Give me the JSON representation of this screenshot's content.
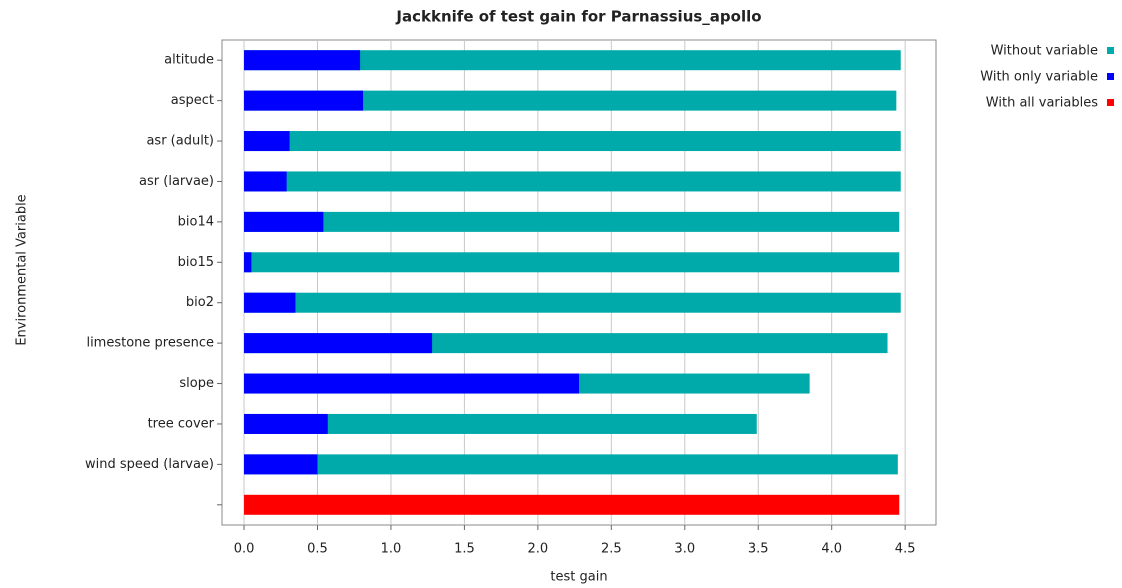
{
  "chart_data": {
    "type": "bar",
    "orientation": "horizontal",
    "title": "Jackknife of test gain for Parnassius_apollo",
    "x_label": "test gain",
    "y_label": "Environmental Variable",
    "categories": [
      "altitude",
      "aspect",
      "asr (adult)",
      "asr (larvae)",
      "bio14",
      "bio15",
      "bio2",
      "limestone presence",
      "slope",
      "tree cover",
      "wind speed (larvae)",
      null
    ],
    "series": [
      {
        "name": "Without variable",
        "color": "#00aaaa",
        "values": [
          4.47,
          4.44,
          4.47,
          4.47,
          4.46,
          4.46,
          4.47,
          4.38,
          3.85,
          3.49,
          4.45,
          null
        ]
      },
      {
        "name": "With only variable",
        "color": "#0000ff",
        "values": [
          0.79,
          0.81,
          0.31,
          0.29,
          0.54,
          0.05,
          0.35,
          1.28,
          2.28,
          0.57,
          0.5,
          null
        ]
      },
      {
        "name": "With all variables",
        "color": "#ff0000",
        "values": [
          null,
          null,
          null,
          null,
          null,
          null,
          null,
          null,
          null,
          null,
          null,
          4.46
        ]
      }
    ],
    "xlim": [
      -0.15,
      4.71
    ],
    "xticks": [
      {
        "value": 0,
        "label": "0.0"
      },
      0.5,
      {
        "value": 1,
        "label": "1.0"
      },
      1.5,
      {
        "value": 2,
        "label": "2.0"
      },
      2.5,
      {
        "value": 3,
        "label": "3.0"
      },
      3.5,
      {
        "value": 4,
        "label": "4.0"
      },
      4.5
    ],
    "grid": true,
    "legend": "right"
  }
}
